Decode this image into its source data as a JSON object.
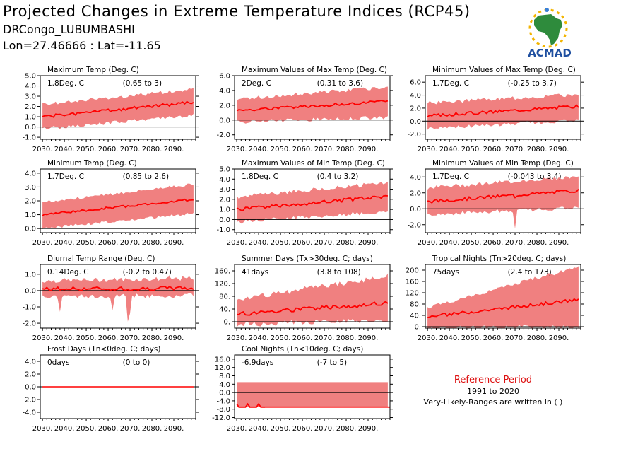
{
  "header": {
    "title": "Projected Changes in Extreme Temperature Indices (RCP45)",
    "station": "DRCongo_LUBUMBASHI",
    "coords": "Lon=27.46666 : Lat=-11.65"
  },
  "logo": {
    "text": "ACMAD",
    "icon": "africa-sun-logo-icon",
    "colors": {
      "africa": "#2e8b3c",
      "sun": "#f2b400",
      "text": "#1f4fa0"
    }
  },
  "reference": {
    "title": "Reference Period",
    "period": "1991 to 2020",
    "note": "Very-Likely-Ranges are written in ( )"
  },
  "colors": {
    "band": "#f08080",
    "line": "#ff0000",
    "zero": "#000000",
    "ref_title": "#dd1111"
  },
  "chart_data": [
    {
      "type": "area",
      "title": "Maximum Temp (Deg. C)",
      "value_text": "1.8Deg. C",
      "range_text": "(0.65 to 3)",
      "x_ticks": [
        "2030.",
        "2040.",
        "2050.",
        "2060.",
        "2070.",
        "2080.",
        "2090."
      ],
      "y_ticks": [
        "-1.0",
        "0.0",
        "1.0",
        "2.0",
        "3.0",
        "4.0",
        "5.0"
      ],
      "ylim": [
        -1.2,
        5.0
      ],
      "xlim": [
        2029,
        2100
      ],
      "zero_line": true,
      "mid_start": 1.0,
      "mid_end": 2.4,
      "lo_start": 0.0,
      "lo_end": 1.3,
      "hi_start": 2.0,
      "hi_end": 3.5,
      "noise": 0.35,
      "spikes": [],
      "seed": 1
    },
    {
      "type": "area",
      "title": "Maximum Values of Max Temp (Deg. C)",
      "value_text": "2Deg. C",
      "range_text": "(0.31 to 3.6)",
      "x_ticks": [
        "2030.",
        "2040.",
        "2050.",
        "2060.",
        "2070.",
        "2080.",
        "2090."
      ],
      "y_ticks": [
        "-2.0",
        "0.0",
        "2.0",
        "4.0",
        "6.0"
      ],
      "ylim": [
        -2.6,
        6.0
      ],
      "xlim": [
        2029,
        2100
      ],
      "zero_line": true,
      "mid_start": 1.3,
      "mid_end": 2.5,
      "lo_start": 0.0,
      "lo_end": 0.6,
      "hi_start": 2.6,
      "hi_end": 4.2,
      "noise": 0.5,
      "spikes": [],
      "seed": 2
    },
    {
      "type": "area",
      "title": "Minimum Values of Max Temp (Deg. C)",
      "value_text": "1.7Deg. C",
      "range_text": "(-0.25 to 3.7)",
      "x_ticks": [
        "2030.",
        "2040.",
        "2050.",
        "2060.",
        "2070.",
        "2080.",
        "2090."
      ],
      "y_ticks": [
        "-2.0",
        "0.0",
        "2.0",
        "4.0",
        "6.0"
      ],
      "ylim": [
        -2.8,
        7.0
      ],
      "xlim": [
        2029,
        2100
      ],
      "zero_line": true,
      "mid_start": 0.8,
      "mid_end": 2.3,
      "lo_start": -0.8,
      "lo_end": 0.4,
      "hi_start": 2.5,
      "hi_end": 3.8,
      "noise": 0.6,
      "spikes": [],
      "seed": 3
    },
    {
      "type": "area",
      "title": "Minimum Temp (Deg. C)",
      "value_text": "1.7Deg. C",
      "range_text": "(0.85 to 2.6)",
      "x_ticks": [
        "2030.",
        "2040.",
        "2050.",
        "2060.",
        "2070.",
        "2080.",
        "2090."
      ],
      "y_ticks": [
        "0.0",
        "1.0",
        "2.0",
        "3.0",
        "4.0"
      ],
      "ylim": [
        -0.3,
        4.3
      ],
      "xlim": [
        2029,
        2100
      ],
      "zero_line": true,
      "mid_start": 1.0,
      "mid_end": 2.1,
      "lo_start": 0.1,
      "lo_end": 1.2,
      "hi_start": 1.8,
      "hi_end": 3.1,
      "noise": 0.2,
      "spikes": [],
      "seed": 4
    },
    {
      "type": "area",
      "title": "Maximum Values of Min Temp (Deg. C)",
      "value_text": "1.8Deg. C",
      "range_text": "(0.4 to 3.2)",
      "x_ticks": [
        "2030.",
        "2040.",
        "2050.",
        "2060.",
        "2070.",
        "2080.",
        "2090."
      ],
      "y_ticks": [
        "-1.0",
        "0.0",
        "1.0",
        "2.0",
        "3.0",
        "4.0",
        "5.0"
      ],
      "ylim": [
        -1.3,
        5.0
      ],
      "xlim": [
        2029,
        2100
      ],
      "zero_line": true,
      "mid_start": 1.0,
      "mid_end": 2.3,
      "lo_start": 0.0,
      "lo_end": 1.0,
      "hi_start": 2.0,
      "hi_end": 3.4,
      "noise": 0.45,
      "spikes": [],
      "seed": 5
    },
    {
      "type": "area",
      "title": "Minimum Values of Min Temp (Deg. C)",
      "value_text": "1.7Deg. C",
      "range_text": "(-0.043 to 3.4)",
      "x_ticks": [
        "2030.",
        "2040.",
        "2050.",
        "2060.",
        "2070.",
        "2080.",
        "2090."
      ],
      "y_ticks": [
        "-2.0",
        "0.0",
        "2.0",
        "4.0"
      ],
      "ylim": [
        -3.0,
        5.0
      ],
      "xlim": [
        2029,
        2100
      ],
      "zero_line": true,
      "mid_start": 0.9,
      "mid_end": 2.3,
      "lo_start": -0.5,
      "lo_end": 0.4,
      "hi_start": 2.4,
      "hi_end": 3.8,
      "noise": 0.5,
      "spikes": [
        [
          2070,
          -2.5
        ]
      ],
      "seed": 6
    },
    {
      "type": "area",
      "title": "Diurnal Temp Range (Deg. C)",
      "value_text": "0.14Deg. C",
      "range_text": "(-0.2 to 0.47)",
      "x_ticks": [
        "2030.",
        "2040.",
        "2050.",
        "2060.",
        "2070.",
        "2080.",
        "2090."
      ],
      "y_ticks": [
        "-2.0",
        "-1.0",
        "0.0",
        "1.0"
      ],
      "ylim": [
        -2.3,
        1.6
      ],
      "xlim": [
        2029,
        2100
      ],
      "zero_line": true,
      "mid_start": 0.1,
      "mid_end": 0.15,
      "lo_start": -0.25,
      "lo_end": -0.15,
      "hi_start": 0.45,
      "hi_end": 0.6,
      "noise": 0.3,
      "spikes": [
        [
          2038,
          -1.3
        ],
        [
          2062,
          -1.2
        ],
        [
          2069,
          -1.9
        ],
        [
          2070,
          -1.4
        ]
      ],
      "seed": 7
    },
    {
      "type": "area",
      "title": "Summer Days (Tx>30deg. C; days)",
      "value_text": "41days",
      "range_text": "(3.8 to 108)",
      "x_ticks": [
        "2030.",
        "2040.",
        "2050.",
        "2060.",
        "2070.",
        "2080.",
        "2090."
      ],
      "y_ticks": [
        "0.",
        "40.",
        "80.",
        "120.",
        "160."
      ],
      "ylim": [
        -20,
        180
      ],
      "xlim": [
        2029,
        2100
      ],
      "zero_line": true,
      "mid_start": 24,
      "mid_end": 58,
      "lo_start": 0,
      "lo_end": 15,
      "hi_start": 60,
      "hi_end": 135,
      "noise": 18,
      "spikes": [],
      "seed": 8
    },
    {
      "type": "area",
      "title": "Tropical Nights (Tn>20deg. C; days)",
      "value_text": "75days",
      "range_text": "(2.4 to 173)",
      "x_ticks": [
        "2030.",
        "2040.",
        "2050.",
        "2060.",
        "2070.",
        "2080.",
        "2090."
      ],
      "y_ticks": [
        "0.",
        "40.",
        "80.",
        "120.",
        "160.",
        "200."
      ],
      "ylim": [
        -5,
        220
      ],
      "xlim": [
        2029,
        2100
      ],
      "zero_line": true,
      "mid_start": 35,
      "mid_end": 95,
      "lo_start": 2,
      "lo_end": 8,
      "hi_start": 60,
      "hi_end": 205,
      "noise": 14,
      "spikes": [],
      "seed": 9
    },
    {
      "type": "area",
      "title": "Frost Days (Tn<0deg. C; days)",
      "value_text": "0days",
      "range_text": "(0 to 0)",
      "x_ticks": [
        "2030.",
        "2040.",
        "2050.",
        "2060.",
        "2070.",
        "2080.",
        "2090."
      ],
      "y_ticks": [
        "-4.0",
        "-2.0",
        "0.0",
        "2.0",
        "4.0"
      ],
      "ylim": [
        -5,
        5
      ],
      "xlim": [
        2029,
        2100
      ],
      "zero_line": true,
      "flat": 0,
      "seed": 10
    },
    {
      "type": "area",
      "title": "Cool Nights (Tn<10deg. C; days)",
      "value_text": "-6.9days",
      "range_text": "(-7 to 5)",
      "x_ticks": [
        "2030.",
        "2040.",
        "2050.",
        "2060.",
        "2070.",
        "2080.",
        "2090."
      ],
      "y_ticks": [
        "-12.0",
        "-8.0",
        "-4.0",
        "0.0",
        "4.0",
        "8.0",
        "12.0",
        "16.0"
      ],
      "ylim": [
        -12.5,
        18
      ],
      "xlim": [
        2029,
        2100
      ],
      "zero_line": true,
      "band_lo": -7,
      "band_hi": 5,
      "line_value": -7,
      "seed": 11
    }
  ]
}
